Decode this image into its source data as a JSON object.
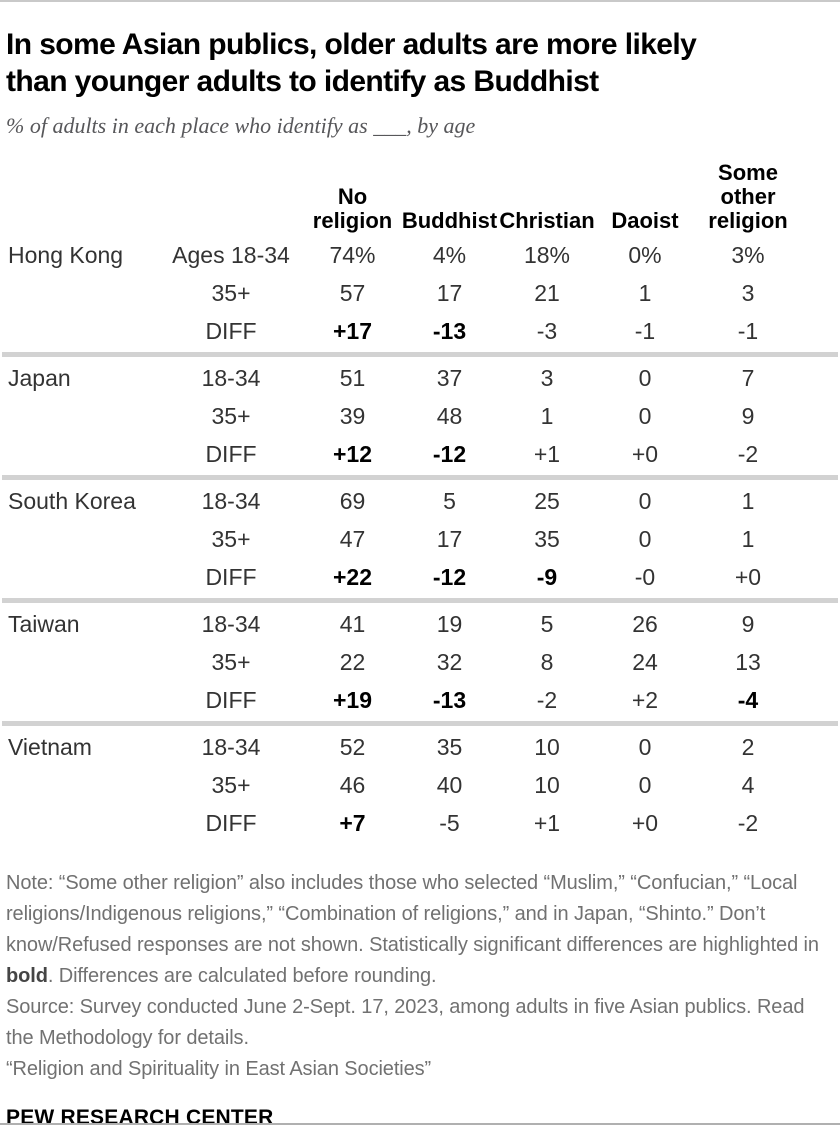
{
  "header": {
    "title_line1": "In some Asian publics, older adults are more likely",
    "title_line2": "than younger adults to identify as Buddhist",
    "subtitle": "% of adults in each place who identify as ___, by age"
  },
  "chart_data": {
    "type": "table",
    "title": "In some Asian publics, older adults are more likely than younger adults to identify as Buddhist",
    "subtitle": "% of adults in each place who identify as ___, by age",
    "columns": [
      "No religion",
      "Buddhist",
      "Christian",
      "Daoist",
      "Some other religion"
    ],
    "row_groups": [
      {
        "country": "Hong Kong",
        "rows": [
          {
            "age_label": "Ages 18-34",
            "values": [
              "74%",
              "4%",
              "18%",
              "0%",
              "3%"
            ],
            "bold": [
              false,
              false,
              false,
              false,
              false
            ]
          },
          {
            "age_label": "35+",
            "values": [
              "57",
              "17",
              "21",
              "1",
              "3"
            ],
            "bold": [
              false,
              false,
              false,
              false,
              false
            ]
          },
          {
            "age_label": "DIFF",
            "values": [
              "+17",
              "-13",
              "-3",
              "-1",
              "-1"
            ],
            "bold": [
              true,
              true,
              false,
              false,
              false
            ]
          }
        ]
      },
      {
        "country": "Japan",
        "rows": [
          {
            "age_label": "18-34",
            "values": [
              "51",
              "37",
              "3",
              "0",
              "7"
            ],
            "bold": [
              false,
              false,
              false,
              false,
              false
            ]
          },
          {
            "age_label": "35+",
            "values": [
              "39",
              "48",
              "1",
              "0",
              "9"
            ],
            "bold": [
              false,
              false,
              false,
              false,
              false
            ]
          },
          {
            "age_label": "DIFF",
            "values": [
              "+12",
              "-12",
              "+1",
              "+0",
              "-2"
            ],
            "bold": [
              true,
              true,
              false,
              false,
              false
            ]
          }
        ]
      },
      {
        "country": "South Korea",
        "rows": [
          {
            "age_label": "18-34",
            "values": [
              "69",
              "5",
              "25",
              "0",
              "1"
            ],
            "bold": [
              false,
              false,
              false,
              false,
              false
            ]
          },
          {
            "age_label": "35+",
            "values": [
              "47",
              "17",
              "35",
              "0",
              "1"
            ],
            "bold": [
              false,
              false,
              false,
              false,
              false
            ]
          },
          {
            "age_label": "DIFF",
            "values": [
              "+22",
              "-12",
              "-9",
              "-0",
              "+0"
            ],
            "bold": [
              true,
              true,
              true,
              false,
              false
            ]
          }
        ]
      },
      {
        "country": "Taiwan",
        "rows": [
          {
            "age_label": "18-34",
            "values": [
              "41",
              "19",
              "5",
              "26",
              "9"
            ],
            "bold": [
              false,
              false,
              false,
              false,
              false
            ]
          },
          {
            "age_label": "35+",
            "values": [
              "22",
              "32",
              "8",
              "24",
              "13"
            ],
            "bold": [
              false,
              false,
              false,
              false,
              false
            ]
          },
          {
            "age_label": "DIFF",
            "values": [
              "+19",
              "-13",
              "-2",
              "+2",
              "-4"
            ],
            "bold": [
              true,
              true,
              false,
              false,
              true
            ]
          }
        ]
      },
      {
        "country": "Vietnam",
        "rows": [
          {
            "age_label": "18-34",
            "values": [
              "52",
              "35",
              "10",
              "0",
              "2"
            ],
            "bold": [
              false,
              false,
              false,
              false,
              false
            ]
          },
          {
            "age_label": "35+",
            "values": [
              "46",
              "40",
              "10",
              "0",
              "4"
            ],
            "bold": [
              false,
              false,
              false,
              false,
              false
            ]
          },
          {
            "age_label": "DIFF",
            "values": [
              "+7",
              "-5",
              "+1",
              "+0",
              "-2"
            ],
            "bold": [
              true,
              false,
              false,
              false,
              false
            ]
          }
        ]
      }
    ]
  },
  "footer": {
    "note_prefix": "Note: “Some other religion” also includes those who selected “Muslim,” “Confucian,” “Local religions/Indigenous religions,” “Combination of religions,” and in Japan, “Shinto.” Don’t know/Refused responses are not shown. Statistically significant differences are highlighted in ",
    "note_bold": "bold",
    "note_suffix": ". Differences are calculated before rounding.",
    "source": "Source: Survey conducted June 2-Sept. 17, 2023, among adults in five Asian publics. Read the Methodology for details.",
    "citation": "“Religion and Spirituality in East Asian Societies”",
    "brand": "PEW RESEARCH CENTER"
  },
  "colors": {
    "title": "#000000",
    "subtitle": "#57575a",
    "body_text": "#333333",
    "bold_diff": "#000000",
    "note_text": "#717171",
    "divider": "#d2d2d2",
    "rule": "#c9c9c9"
  }
}
